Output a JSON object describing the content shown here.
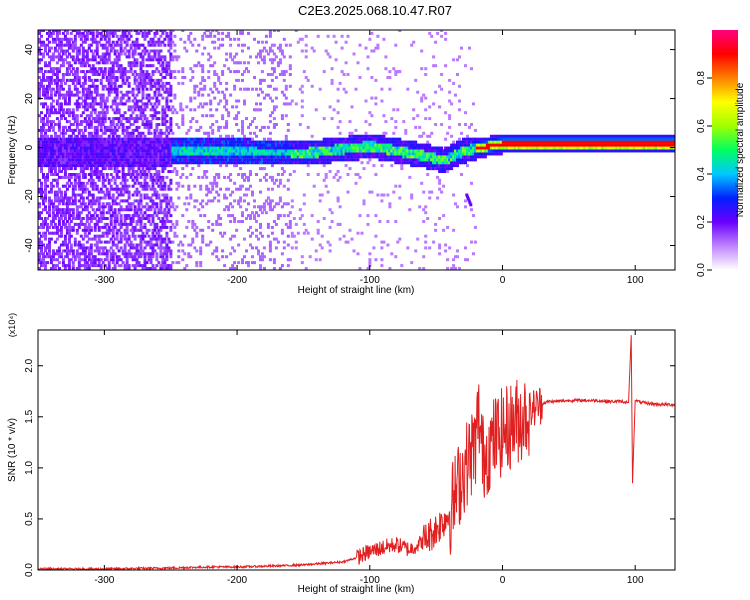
{
  "page": {
    "title": "C2E3.2025.068.10.47.R07"
  },
  "chart_data": [
    {
      "type": "heatmap",
      "xlabel": "Height of straight line (km)",
      "ylabel": "Frequency (Hz)",
      "xlim": [
        -350,
        130
      ],
      "ylim": [
        -50,
        48
      ],
      "x_ticks": [
        -300,
        -200,
        -100,
        0,
        100
      ],
      "x_tick_labels": [
        "-300",
        "-200",
        "-100",
        "0",
        "100"
      ],
      "y_ticks": [
        -40,
        -20,
        0,
        20,
        40
      ],
      "y_tick_labels": [
        "-40",
        "-20",
        "0",
        "20",
        "40"
      ],
      "colorbar": {
        "label": "Normalized spectral amplitude",
        "range": [
          0,
          1
        ],
        "ticks": [
          0.0,
          0.2,
          0.4,
          0.6,
          0.8
        ],
        "tick_labels": [
          "0.0",
          "0.2",
          "0.4",
          "0.6",
          "0.8"
        ],
        "colors": [
          "#ffffff",
          "#c084ff",
          "#6a00ff",
          "#0020ff",
          "#00c8ff",
          "#00ff60",
          "#a0ff00",
          "#ffff00",
          "#ff8000",
          "#ff0000",
          "#ff0080"
        ]
      },
      "ridge": {
        "x": [
          -250,
          -200,
          -150,
          -100,
          -60,
          -45,
          -30,
          -10,
          0,
          50,
          100,
          130
        ],
        "y": [
          -2,
          -2,
          -3,
          0,
          -4,
          -6,
          -2,
          0,
          1,
          1,
          1,
          1
        ]
      },
      "grid": false
    },
    {
      "type": "line",
      "xlabel": "Height of straight line (km)",
      "ylabel": "SNR (10 * v/v)",
      "y_multiplier": "(x10⁴)",
      "xlim": [
        -350,
        130
      ],
      "ylim": [
        0,
        2.35
      ],
      "x_ticks": [
        -300,
        -200,
        -100,
        0,
        100
      ],
      "x_tick_labels": [
        "-300",
        "-200",
        "-100",
        "0",
        "100"
      ],
      "y_ticks": [
        0.0,
        0.5,
        1.0,
        1.5,
        2.0
      ],
      "y_tick_labels": [
        "0.0",
        "0.5",
        "1.0",
        "1.5",
        "2.0"
      ],
      "series": [
        {
          "color": "#e02020",
          "x": [
            -350,
            -300,
            -250,
            -220,
            -200,
            -170,
            -150,
            -120,
            -110,
            -100,
            -90,
            -80,
            -70,
            -60,
            -50,
            -40,
            -35,
            -30,
            -25,
            -20,
            -18,
            -15,
            -10,
            -5,
            0,
            5,
            10,
            15,
            20,
            25,
            30,
            35,
            40,
            50,
            60,
            70,
            80,
            90,
            95,
            97,
            98,
            100,
            105,
            110,
            120,
            130
          ],
          "y": [
            0.01,
            0.01,
            0.02,
            0.03,
            0.03,
            0.04,
            0.05,
            0.08,
            0.12,
            0.18,
            0.22,
            0.25,
            0.2,
            0.28,
            0.4,
            0.55,
            0.75,
            0.95,
            1.1,
            1.25,
            1.55,
            1.1,
            1.2,
            1.3,
            1.35,
            1.4,
            1.45,
            1.5,
            1.55,
            1.6,
            1.63,
            1.65,
            1.65,
            1.66,
            1.66,
            1.66,
            1.65,
            1.65,
            1.64,
            2.3,
            0.85,
            1.66,
            1.64,
            1.63,
            1.62,
            1.62
          ]
        }
      ],
      "grid": false
    }
  ]
}
